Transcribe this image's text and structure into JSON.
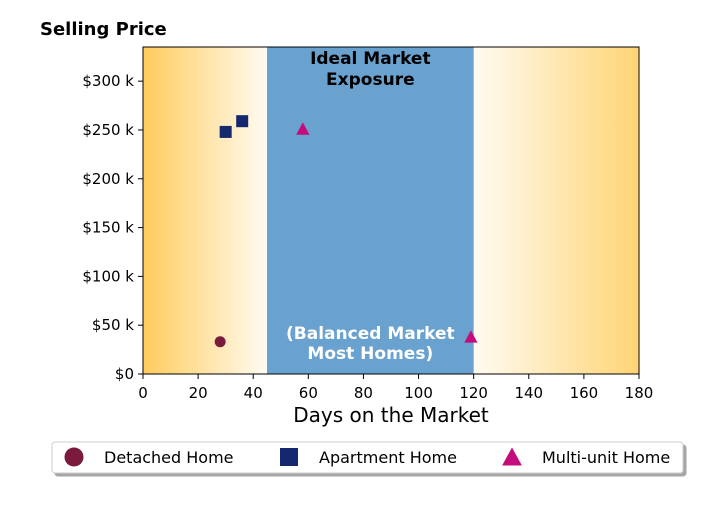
{
  "chart_data": {
    "type": "scatter",
    "title": "Selling Price",
    "xlabel": "Days on the Market",
    "ylabel": "",
    "xlim": [
      0,
      180
    ],
    "ylim": [
      0,
      335000
    ],
    "x_ticks": [
      0,
      20,
      40,
      60,
      80,
      100,
      120,
      140,
      160,
      180
    ],
    "x_tick_labels": [
      "0",
      "20",
      "40",
      "60",
      "80",
      "100",
      "120",
      "140",
      "160",
      "180"
    ],
    "y_ticks": [
      0,
      50000,
      100000,
      150000,
      200000,
      250000,
      300000
    ],
    "y_tick_labels": [
      "$0",
      "$50 k",
      "$100 k",
      "$150 k",
      "$200 k",
      "$250 k",
      "$300 k"
    ],
    "grid": false,
    "legend_position": "bottom",
    "background_gradient_color": "#ffcc5c",
    "ideal_band": {
      "x_range": [
        45,
        120
      ],
      "color": "#69a1cf",
      "label_top_lines": [
        "Ideal Market",
        "Exposure"
      ],
      "label_bottom_lines": [
        "(Balanced Market",
        "Most Homes)"
      ]
    },
    "series": [
      {
        "name": "Detached Home",
        "marker": "circle",
        "color": "#7a1a3d",
        "points": [
          {
            "x": 28,
            "y": 33000
          }
        ]
      },
      {
        "name": "Apartment Home",
        "marker": "square",
        "color": "#13286e",
        "points": [
          {
            "x": 30,
            "y": 248000
          },
          {
            "x": 36,
            "y": 259000
          }
        ]
      },
      {
        "name": "Multi-unit Home",
        "marker": "triangle",
        "color": "#c40d7a",
        "points": [
          {
            "x": 58,
            "y": 251000
          },
          {
            "x": 119,
            "y": 38000
          }
        ]
      }
    ]
  }
}
